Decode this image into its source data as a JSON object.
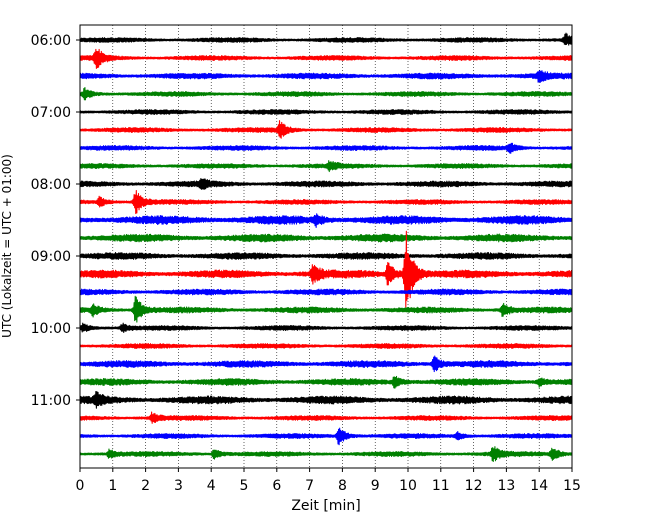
{
  "chart_data": {
    "type": "line",
    "title": "",
    "xlabel": "Zeit  [min]",
    "ylabel": "UTC (Lokalzeit = UTC + 01:00)",
    "xlim": [
      0,
      15
    ],
    "x_ticks": [
      "0",
      "1",
      "2",
      "3",
      "4",
      "5",
      "6",
      "7",
      "8",
      "9",
      "10",
      "11",
      "12",
      "13",
      "14",
      "15"
    ],
    "grid": "vertical dotted at every minute",
    "row_interval_min": 15,
    "row_color_cycle": [
      "#000000",
      "#ff0000",
      "#0000ff",
      "#008000"
    ],
    "y_ticks": [
      "06:00",
      "07:00",
      "08:00",
      "09:00",
      "10:00",
      "11:00"
    ],
    "rows": [
      {
        "start": "06:00",
        "color": "#000000",
        "noise": 2.5,
        "events": [
          {
            "t": 14.8,
            "amp": 6
          }
        ]
      },
      {
        "start": "06:15",
        "color": "#ff0000",
        "noise": 2.5,
        "events": [
          {
            "t": 0.5,
            "amp": 10
          }
        ]
      },
      {
        "start": "06:30",
        "color": "#0000ff",
        "noise": 3.0,
        "events": [
          {
            "t": 14.0,
            "amp": 5
          }
        ]
      },
      {
        "start": "06:45",
        "color": "#008000",
        "noise": 2.5,
        "events": [
          {
            "t": 0.15,
            "amp": 5
          }
        ]
      },
      {
        "start": "07:00",
        "color": "#000000",
        "noise": 2.5,
        "events": []
      },
      {
        "start": "07:15",
        "color": "#ff0000",
        "noise": 2.5,
        "events": [
          {
            "t": 6.1,
            "amp": 8
          }
        ]
      },
      {
        "start": "07:30",
        "color": "#0000ff",
        "noise": 2.5,
        "events": [
          {
            "t": 13.1,
            "amp": 5
          }
        ]
      },
      {
        "start": "07:45",
        "color": "#008000",
        "noise": 2.5,
        "events": [
          {
            "t": 7.6,
            "amp": 4
          }
        ]
      },
      {
        "start": "08:00",
        "color": "#000000",
        "noise": 3.0,
        "events": [
          {
            "t": 3.7,
            "amp": 4
          }
        ]
      },
      {
        "start": "08:15",
        "color": "#ff0000",
        "noise": 2.5,
        "events": [
          {
            "t": 1.7,
            "amp": 12
          },
          {
            "t": 0.6,
            "amp": 5
          }
        ]
      },
      {
        "start": "08:30",
        "color": "#0000ff",
        "noise": 4.5,
        "events": [
          {
            "t": 7.2,
            "amp": 5
          }
        ]
      },
      {
        "start": "08:45",
        "color": "#008000",
        "noise": 4.0,
        "events": []
      },
      {
        "start": "09:00",
        "color": "#000000",
        "noise": 3.5,
        "events": []
      },
      {
        "start": "09:15",
        "color": "#ff0000",
        "noise": 4.0,
        "events": [
          {
            "t": 9.95,
            "amp": 42
          },
          {
            "t": 9.4,
            "amp": 12
          },
          {
            "t": 7.1,
            "amp": 10
          }
        ]
      },
      {
        "start": "09:30",
        "color": "#0000ff",
        "noise": 3.0,
        "events": []
      },
      {
        "start": "09:45",
        "color": "#008000",
        "noise": 3.0,
        "events": [
          {
            "t": 1.7,
            "amp": 14
          },
          {
            "t": 12.9,
            "amp": 7
          },
          {
            "t": 0.4,
            "amp": 5
          }
        ]
      },
      {
        "start": "10:00",
        "color": "#000000",
        "noise": 2.5,
        "events": [
          {
            "t": 1.3,
            "amp": 4
          },
          {
            "t": 0.1,
            "amp": 4
          }
        ]
      },
      {
        "start": "10:15",
        "color": "#ff0000",
        "noise": 2.5,
        "events": []
      },
      {
        "start": "10:30",
        "color": "#0000ff",
        "noise": 3.5,
        "events": [
          {
            "t": 10.8,
            "amp": 8
          }
        ]
      },
      {
        "start": "10:45",
        "color": "#008000",
        "noise": 3.5,
        "events": [
          {
            "t": 9.6,
            "amp": 6
          },
          {
            "t": 14.0,
            "amp": 4
          }
        ]
      },
      {
        "start": "11:00",
        "color": "#000000",
        "noise": 4.0,
        "events": [
          {
            "t": 0.5,
            "amp": 5
          }
        ]
      },
      {
        "start": "11:15",
        "color": "#ff0000",
        "noise": 2.5,
        "events": [
          {
            "t": 2.2,
            "amp": 5
          }
        ]
      },
      {
        "start": "11:30",
        "color": "#0000ff",
        "noise": 2.5,
        "events": [
          {
            "t": 7.9,
            "amp": 9
          },
          {
            "t": 11.5,
            "amp": 4
          }
        ]
      },
      {
        "start": "11:45",
        "color": "#008000",
        "noise": 2.5,
        "events": [
          {
            "t": 12.6,
            "amp": 7
          },
          {
            "t": 14.4,
            "amp": 7
          },
          {
            "t": 4.1,
            "amp": 5
          },
          {
            "t": 0.9,
            "amp": 4
          }
        ]
      }
    ]
  }
}
